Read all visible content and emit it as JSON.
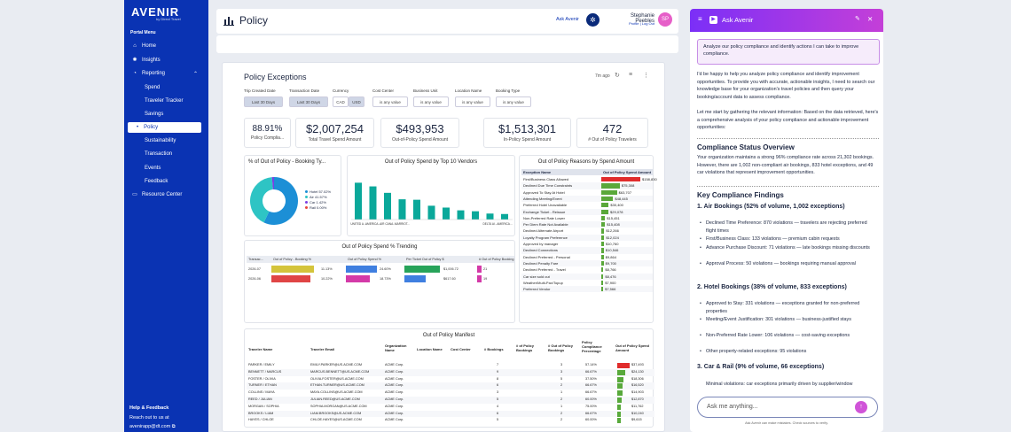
{
  "sidebar": {
    "logo": "AVENIR",
    "logo_sub": "by Direct Travel",
    "menu_title": "Portal Menu",
    "items": [
      {
        "label": "Home",
        "icon": "home-icon"
      },
      {
        "label": "Insights",
        "icon": "insights-icon"
      },
      {
        "label": "Reporting",
        "icon": "reporting-icon"
      },
      {
        "label": "Spend"
      },
      {
        "label": "Traveler Tracker"
      },
      {
        "label": "Savings"
      },
      {
        "label": "Policy"
      },
      {
        "label": "Sustainability"
      },
      {
        "label": "Transaction"
      },
      {
        "label": "Events"
      },
      {
        "label": "Feedback"
      },
      {
        "label": "Resource Center",
        "icon": "book-icon"
      }
    ],
    "help_title": "Help & Feedback",
    "help_text": "Reach out to us at",
    "help_email": "avenirapp@dt.com"
  },
  "header": {
    "title": "Policy",
    "ask_label": "Ask Avenir",
    "user_name": "Stephanie Peebles",
    "user_links": "Profile | Log Out",
    "avatar": "SP"
  },
  "report": {
    "title": "Policy Exceptions",
    "updated": "7m ago",
    "filters": [
      {
        "label": "Trip Created Date",
        "value": "Last 30 Days"
      },
      {
        "label": "Transaction Date",
        "value": "Last 30 Days"
      },
      {
        "label": "Currency",
        "value": "CAD",
        "value2": "USD"
      },
      {
        "label": "Cost Center",
        "value": "is any value"
      },
      {
        "label": "Business Unit",
        "value": "is any value"
      },
      {
        "label": "Location Name",
        "value": "is any value"
      },
      {
        "label": "Booking Type",
        "value": "is any value"
      }
    ],
    "kpis": [
      {
        "value": "88.91%",
        "label": "Policy Complia..."
      },
      {
        "value": "$2,007,254",
        "label": "Total Travel Spend Amount"
      },
      {
        "value": "$493,953",
        "label": "Out-of-Policy Spend Amount"
      },
      {
        "value": "$1,513,301",
        "label": "In-Policy Spend Amount"
      },
      {
        "value": "472",
        "label": "# Out of Policy Travelers"
      }
    ]
  },
  "chart_data": [
    {
      "type": "pie",
      "title": "% of Out of Policy - Booking Ty...",
      "labels": [
        "Hotel 57.02%",
        "Air 41.57%",
        "Car 1.42%",
        "Rail 0.00%"
      ],
      "values": [
        57.02,
        41.57,
        1.42,
        0.0
      ],
      "colors": [
        "#1c8fd6",
        "#2ec4c4",
        "#7b3fe4",
        "#e8463a"
      ]
    },
    {
      "type": "bar",
      "title": "Out of Policy Spend by Top 10 Vendors",
      "categories": [
        "UNITED A...",
        "AMERICA...",
        "AIR CANA...",
        "MARRIOT...",
        "",
        "",
        "",
        "",
        "",
        "DELTA AI...",
        "AMERICA..."
      ],
      "values": [
        80,
        72,
        58,
        44,
        43,
        30,
        26,
        20,
        18,
        13,
        12
      ]
    },
    {
      "type": "table",
      "title": "Out of Policy Reasons by Spend Amount",
      "columns": [
        "Exception Name",
        "Out of Policy Spend Amount"
      ],
      "rows": [
        [
          "First/Business Class Allowed",
          "$158,830",
          158830
        ],
        [
          "Declined Due Time Constraints",
          "$75,308",
          75308
        ],
        [
          "Approved To Stay At Hotel",
          "$63,707",
          63707
        ],
        [
          "Attending Meeting/Event",
          "$48,445",
          48445
        ],
        [
          "Preferred Hotel Unavailable",
          "$30,400",
          30400
        ],
        [
          "Exchange Ticket - Reissue",
          "$29,078",
          29078
        ],
        [
          "Non-Preferred Rate Lower",
          "$15,451",
          15451
        ],
        [
          "Per Diem Rate Not Available",
          "$15,408",
          15408
        ],
        [
          "Declined Alternate Airport",
          "$12,266",
          12266
        ],
        [
          "Loyalty Program Preference",
          "$12,024",
          12024
        ],
        [
          "Approved by manager",
          "$10,760",
          10760
        ],
        [
          "Declined Connections",
          "$10,546",
          10546
        ],
        [
          "Declined Preferred - Personal",
          "$9,864",
          9864
        ],
        [
          "Declined Penalty Fare",
          "$9,700",
          9700
        ],
        [
          "Declined Preferred - Travel",
          "$8,766",
          8766
        ],
        [
          "Car size sold out",
          "$8,476",
          8476
        ],
        [
          "Weather/Multi-Pax/Topup",
          "$7,900",
          7900
        ],
        [
          "Preferred Vendor",
          "$7,566",
          7566
        ]
      ]
    },
    {
      "type": "table",
      "title": "Out of Policy Spend % Trending",
      "columns": [
        "Transac...",
        "Out of Policy - Booking %",
        "Out of Policy Spend %",
        "Per Ticket Out of Policy $",
        "# Out of Policy Booking"
      ],
      "rows": [
        [
          "2026-07",
          "11.13%",
          "24.60%",
          "$1,006.72",
          "21"
        ],
        [
          "2026-06",
          "10.22%",
          "18.73%",
          "$617.60",
          "19"
        ]
      ]
    }
  ],
  "manifest": {
    "title": "Out of Policy Manifest",
    "columns": [
      "Traveler Name",
      "Traveler Email",
      "Organization Name",
      "Location Name",
      "Cost Center",
      "# Bookings",
      "# of Policy Bookings",
      "# Out of Policy Bookings",
      "Policy Compliance Percentage",
      "Out of Policy Spend Amount"
    ],
    "rows": [
      [
        "PARKER / EMILY",
        "EMILY.PARKER@US.ACME.COM",
        "ACME Corp.",
        "7",
        "3",
        "57.14%",
        "$37,493"
      ],
      [
        "BENNETT / MARCUS",
        "MARCUS.BENNETT@US.ACME.COM",
        "ACME Corp.",
        "9",
        "3",
        "66.67%",
        "$24,130"
      ],
      [
        "FOSTER / OLIVIA",
        "OLIVIA.FOSTER@US.ACME.COM",
        "ACME Corp.",
        "8",
        "5",
        "37.50%",
        "$18,306"
      ],
      [
        "TURNER / ETHAN",
        "ETHAN.TURNER@US.ACME.COM",
        "ACME Corp.",
        "6",
        "2",
        "66.67%",
        "$16,520"
      ],
      [
        "COLLINS / MAYA",
        "MAYA.COLLINS@US.ACME.COM",
        "ACME Corp.",
        "3",
        "1",
        "66.67%",
        "$14,903"
      ],
      [
        "REED / JULIAN",
        "JULIAN.REED@US.ACME.COM",
        "ACME Corp.",
        "5",
        "2",
        "60.00%",
        "$12,870"
      ],
      [
        "MORGAN / SOPHIA",
        "SOPHIA.MORGAN@US.ACME.COM",
        "ACME Corp.",
        "4",
        "1",
        "75.00%",
        "$11,762"
      ],
      [
        "BROOKS / LIAM",
        "LIAM.BROOKS@US.ACME.COM",
        "ACME Corp.",
        "6",
        "2",
        "66.67%",
        "$10,240"
      ],
      [
        "HAYES / CHLOE",
        "CHLOE.HAYES@US.ACME.COM",
        "ACME Corp.",
        "5",
        "2",
        "60.00%",
        "$9,615"
      ]
    ]
  },
  "chat": {
    "title": "Ask Avenir",
    "user_message": "Analyze our policy compliance and identify actions I can take to improve compliance.",
    "intro1": "I'd be happy to help you analyze policy compliance and identify improvement opportunities. To provide you with accurate, actionable insights, I need to search our knowledge base for your organization's travel policies and then query your booking/account data to assess compliance.",
    "intro2": "Let me start by gathering the relevant information: Based on the data retrieved, here's a comprehensive analysis of your policy compliance and actionable improvement opportunities:",
    "h_overview": "Compliance Status Overview",
    "overview": "Your organization maintains a strong 96% compliance rate across 21,302 bookings. However, there are 1,002 non-compliant air bookings, 833 hotel exceptions, and 49 car violations that represent improvement opportunities.",
    "h_findings": "Key Compliance Findings",
    "h_air": "1. Air Bookings (52% of volume, 1,002 exceptions)",
    "air": [
      "Declined Time Preference: 870 violations — travelers are rejecting preferred flight times",
      "First/Business Class: 133 violations — premium cabin requests",
      "Advance Purchase Discount: 71 violations — late bookings missing discounts",
      "Approval Process: 50 violations — bookings requiring manual approval"
    ],
    "h_hotel": "2. Hotel Bookings (38% of volume, 833 exceptions)",
    "hotel": [
      "Approved to Stay: 331 violations — exceptions granted for non-preferred properties",
      "Meeting/Event Justification: 301 violations — business-justified stays",
      "Non-Preferred Rate Lower: 106 violations — cost-saving exceptions",
      "Other property-related exceptions: 95 violations"
    ],
    "h_car": "3. Car & Rail (9% of volume, 66 exceptions)",
    "car": [
      "Minimal violations: car exceptions primarily driven by supplier/window"
    ],
    "input_placeholder": "Ask me anything...",
    "disclaimer": "Ask Avenir can make mistakes. Check sources to verify."
  }
}
